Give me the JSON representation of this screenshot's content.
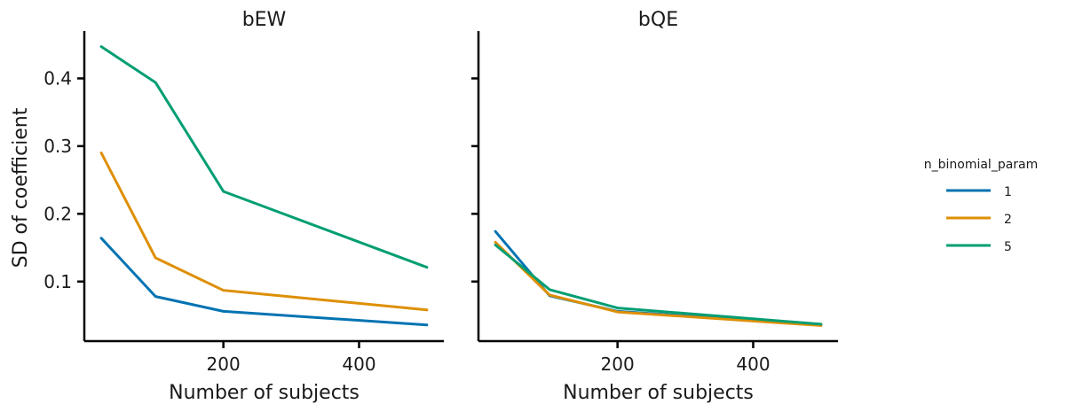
{
  "chart_data": {
    "type": "line",
    "ylabel": "SD of coefficient",
    "ylim": [
      0.012,
      0.47
    ],
    "xlim": [
      -5,
      525
    ],
    "xticks": [
      200,
      400
    ],
    "yticks": [
      0.1,
      0.2,
      0.3,
      0.4
    ],
    "ytick_labels": [
      "0.1",
      "0.2",
      "0.3",
      "0.4"
    ],
    "legend": {
      "title": "n_binomial_param",
      "placement": "right",
      "entries": [
        {
          "label": "1",
          "color": "#0173b2"
        },
        {
          "label": "2",
          "color": "#de8f05"
        },
        {
          "label": "5",
          "color": "#029e73"
        }
      ]
    },
    "panels": [
      {
        "title": "bEW",
        "xlabel": "Number of subjects",
        "series": [
          {
            "name": "1",
            "color": "#0173b2",
            "x": [
              20,
              100,
              200,
              500
            ],
            "y": [
              0.164,
              0.078,
              0.056,
              0.036
            ]
          },
          {
            "name": "2",
            "color": "#de8f05",
            "x": [
              20,
              100,
              200,
              500
            ],
            "y": [
              0.29,
              0.135,
              0.087,
              0.058
            ]
          },
          {
            "name": "5",
            "color": "#029e73",
            "x": [
              20,
              100,
              200,
              500
            ],
            "y": [
              0.447,
              0.394,
              0.233,
              0.121
            ]
          }
        ]
      },
      {
        "title": "bQE",
        "xlabel": "Number of subjects",
        "series": [
          {
            "name": "1",
            "color": "#0173b2",
            "x": [
              20,
              100,
              200,
              500
            ],
            "y": [
              0.174,
              0.079,
              0.056,
              0.036
            ]
          },
          {
            "name": "2",
            "color": "#de8f05",
            "x": [
              20,
              100,
              200,
              500
            ],
            "y": [
              0.158,
              0.08,
              0.055,
              0.035
            ]
          },
          {
            "name": "5",
            "color": "#029e73",
            "x": [
              20,
              100,
              200,
              500
            ],
            "y": [
              0.154,
              0.088,
              0.061,
              0.037
            ]
          }
        ]
      }
    ]
  }
}
